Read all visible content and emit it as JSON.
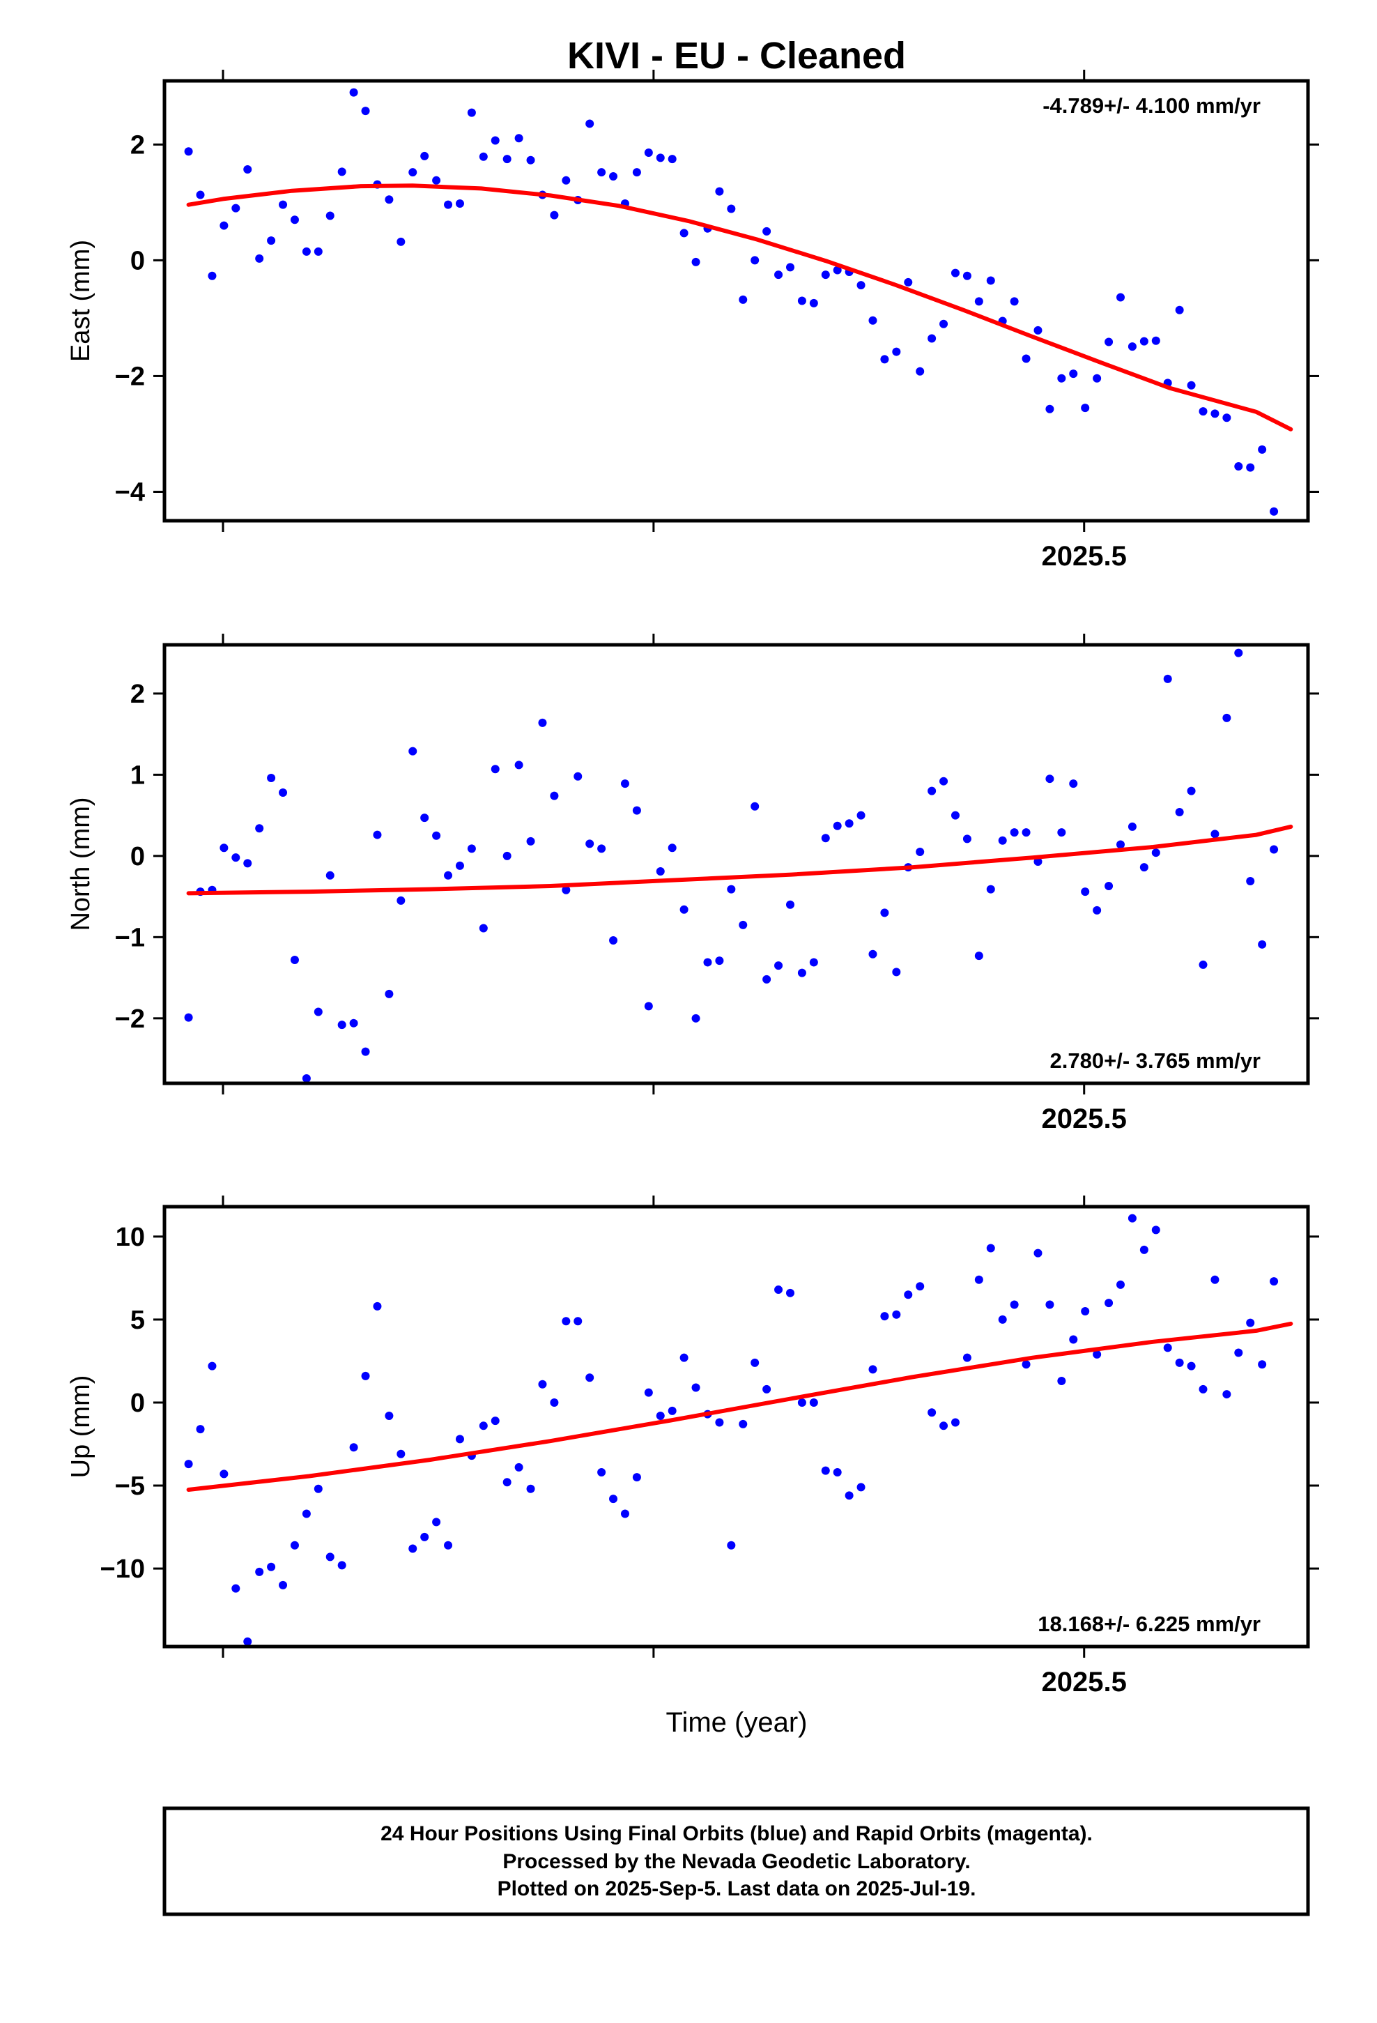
{
  "page": {
    "title": "KIVI  - EU - Cleaned",
    "footer_lines": [
      "24 Hour Positions Using Final Orbits (blue) and Rapid Orbits (magenta).",
      "Processed by the Nevada Geodetic Laboratory.",
      "Plotted on 2025-Sep-5. Last data on 2025-Jul-19."
    ]
  },
  "colors": {
    "points": "#0000ff",
    "fit": "#ff0000",
    "frame": "#000000"
  },
  "chart_data": [
    {
      "type": "scatter",
      "id": "east",
      "ylabel": "East (mm)",
      "rate_label": "-4.789+/- 4.100 mm/yr",
      "rate_placement": "top-right",
      "ylim": [
        -4.5,
        3.1
      ],
      "yticks": [
        -4,
        -2,
        0,
        2
      ],
      "xlim": [
        2024.966,
        2025.63
      ],
      "xticks": [
        2025.0,
        2025.25,
        2025.5
      ],
      "xtick_labels": [
        "",
        "",
        "2025.5"
      ],
      "x_start": 2024.98,
      "x_step": 0.00685,
      "values": [
        1.88,
        1.13,
        -0.27,
        0.6,
        0.9,
        1.57,
        0.03,
        0.34,
        0.96,
        0.7,
        0.15,
        0.15,
        0.77,
        1.53,
        2.9,
        2.58,
        1.31,
        1.05,
        0.32,
        1.52,
        1.8,
        1.38,
        0.96,
        0.98,
        2.55,
        1.79,
        2.07,
        1.75,
        2.11,
        1.73,
        1.13,
        0.78,
        1.38,
        1.04,
        2.36,
        1.52,
        1.45,
        0.98,
        1.52,
        1.86,
        1.77,
        1.75,
        0.47,
        -0.03,
        0.55,
        1.19,
        0.89,
        -0.68,
        0.0,
        0.5,
        -0.25,
        -0.12,
        -0.7,
        -0.74,
        -0.25,
        -0.17,
        -0.2,
        -0.43,
        -1.04,
        -1.71,
        -1.58,
        -0.38,
        -1.92,
        -1.35,
        -1.1,
        -0.22,
        -0.27,
        -0.71,
        -0.35,
        -1.05,
        -0.71,
        -1.7,
        -1.21,
        -2.57,
        -2.04,
        -1.96,
        -2.55,
        -2.04,
        -1.41,
        -0.64,
        -1.49,
        -1.4,
        -1.39,
        -2.12,
        -0.86,
        -2.16,
        -2.61,
        -2.65,
        -2.72,
        -3.56,
        -3.58,
        -3.27,
        -4.34
      ],
      "fit": [
        [
          2024.98,
          0.96
        ],
        [
          2025.0,
          1.06
        ],
        [
          2025.04,
          1.2
        ],
        [
          2025.08,
          1.28
        ],
        [
          2025.11,
          1.29
        ],
        [
          2025.15,
          1.24
        ],
        [
          2025.19,
          1.12
        ],
        [
          2025.23,
          0.94
        ],
        [
          2025.27,
          0.68
        ],
        [
          2025.31,
          0.36
        ],
        [
          2025.35,
          -0.01
        ],
        [
          2025.39,
          -0.42
        ],
        [
          2025.43,
          -0.86
        ],
        [
          2025.47,
          -1.32
        ],
        [
          2025.51,
          -1.77
        ],
        [
          2025.55,
          -2.21
        ],
        [
          2025.6,
          -2.62
        ],
        [
          2025.62,
          -2.92
        ]
      ]
    },
    {
      "type": "scatter",
      "id": "north",
      "ylabel": "North (mm)",
      "rate_label": "2.780+/- 3.765 mm/yr",
      "rate_placement": "bottom-right",
      "ylim": [
        -2.8,
        2.6
      ],
      "yticks": [
        -2,
        -1,
        0,
        1,
        2
      ],
      "xlim": [
        2024.966,
        2025.63
      ],
      "xticks": [
        2025.0,
        2025.25,
        2025.5
      ],
      "xtick_labels": [
        "",
        "",
        "2025.5"
      ],
      "x_start": 2024.98,
      "x_step": 0.00685,
      "values": [
        -1.99,
        -0.44,
        -0.42,
        0.1,
        -0.02,
        -0.09,
        0.34,
        0.96,
        0.78,
        -1.28,
        -2.74,
        -1.92,
        -0.24,
        -2.08,
        -2.06,
        -2.41,
        0.26,
        -1.7,
        -0.55,
        1.29,
        0.47,
        0.25,
        -0.24,
        -0.12,
        0.09,
        -0.89,
        1.07,
        0.0,
        1.12,
        0.18,
        1.64,
        0.74,
        -0.42,
        0.98,
        0.15,
        0.09,
        -1.04,
        0.89,
        0.56,
        -1.85,
        -0.19,
        0.1,
        -0.66,
        -2.0,
        -1.31,
        -1.29,
        -0.41,
        -0.85,
        0.61,
        -1.52,
        -1.35,
        -0.6,
        -1.44,
        -1.31,
        0.22,
        0.37,
        0.4,
        0.5,
        -1.21,
        -0.7,
        -1.43,
        -0.14,
        0.05,
        0.8,
        0.92,
        0.5,
        0.21,
        -1.23,
        -0.41,
        0.19,
        0.29,
        0.29,
        -0.07,
        0.95,
        0.29,
        0.89,
        -0.44,
        -0.67,
        -0.37,
        0.14,
        0.36,
        -0.14,
        0.04,
        2.18,
        0.54,
        0.8,
        -1.34,
        0.27,
        1.7,
        2.5,
        -0.31,
        -1.09,
        0.08
      ],
      "fit": [
        [
          2024.98,
          -0.46
        ],
        [
          2025.05,
          -0.44
        ],
        [
          2025.12,
          -0.41
        ],
        [
          2025.19,
          -0.37
        ],
        [
          2025.26,
          -0.3
        ],
        [
          2025.33,
          -0.23
        ],
        [
          2025.4,
          -0.14
        ],
        [
          2025.47,
          -0.02
        ],
        [
          2025.54,
          0.11
        ],
        [
          2025.6,
          0.26
        ],
        [
          2025.62,
          0.36
        ]
      ]
    },
    {
      "type": "scatter",
      "id": "up",
      "ylabel": "Up (mm)",
      "rate_label": "18.168+/- 6.225 mm/yr",
      "rate_placement": "bottom-right",
      "ylim": [
        -14.7,
        11.8
      ],
      "yticks": [
        -10,
        -5,
        0,
        5,
        10
      ],
      "xlim": [
        2024.966,
        2025.63
      ],
      "xticks": [
        2025.0,
        2025.25,
        2025.5
      ],
      "xtick_labels": [
        "",
        "",
        "2025.5"
      ],
      "x_start": 2024.98,
      "x_step": 0.00685,
      "values": [
        -3.7,
        -1.6,
        2.2,
        -4.3,
        -11.2,
        -14.4,
        -10.2,
        -9.9,
        -11.0,
        -8.6,
        -6.7,
        -5.2,
        -9.3,
        -9.8,
        -2.7,
        1.6,
        5.8,
        -0.8,
        -3.1,
        -8.8,
        -8.1,
        -7.2,
        -8.6,
        -2.2,
        -3.2,
        -1.4,
        -1.1,
        -4.8,
        -3.9,
        -5.2,
        1.1,
        0.0,
        4.9,
        4.9,
        1.5,
        -4.2,
        -5.8,
        -6.7,
        -4.5,
        0.6,
        -0.8,
        -0.5,
        2.7,
        0.9,
        -0.7,
        -1.2,
        -8.6,
        -1.3,
        2.4,
        0.8,
        6.8,
        6.6,
        0.0,
        0.0,
        -4.1,
        -4.2,
        -5.6,
        -5.1,
        2.0,
        5.2,
        5.3,
        6.5,
        7.0,
        -0.6,
        -1.4,
        -1.2,
        2.7,
        7.4,
        9.3,
        5.0,
        5.9,
        2.3,
        9.0,
        5.9,
        1.3,
        3.8,
        5.5,
        2.9,
        6.0,
        7.1,
        11.1,
        9.2,
        10.4,
        3.3,
        2.4,
        2.2,
        0.8,
        7.4,
        0.5,
        3.0,
        4.8,
        2.3,
        7.3
      ],
      "fit": [
        [
          2024.98,
          -5.25
        ],
        [
          2025.05,
          -4.43
        ],
        [
          2025.12,
          -3.45
        ],
        [
          2025.19,
          -2.32
        ],
        [
          2025.26,
          -1.07
        ],
        [
          2025.33,
          0.24
        ],
        [
          2025.4,
          1.53
        ],
        [
          2025.47,
          2.7
        ],
        [
          2025.54,
          3.66
        ],
        [
          2025.6,
          4.33
        ],
        [
          2025.62,
          4.75
        ]
      ]
    }
  ],
  "x_axis_label": "Time (year)"
}
